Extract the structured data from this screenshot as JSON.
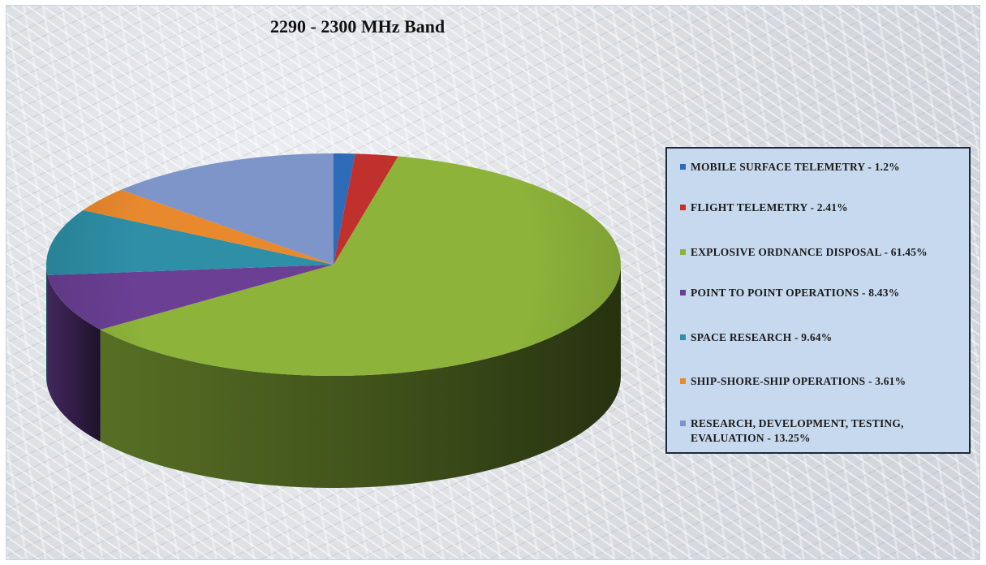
{
  "chart_data": {
    "type": "pie",
    "title": "2290 - 2300 MHz Band",
    "style": "3d",
    "legend_position": "right",
    "slices": [
      {
        "label": "MOBILE SURFACE TELEMETRY - 1.2%",
        "value": 1.2,
        "color": "#2e6bb8"
      },
      {
        "label": "FLIGHT TELEMETRY - 2.41%",
        "value": 2.41,
        "color": "#c0302c"
      },
      {
        "label": "EXPLOSIVE ORDNANCE DISPOSAL - 61.45%",
        "value": 61.45,
        "color": "#8db33a"
      },
      {
        "label": "POINT TO POINT OPERATIONS - 8.43%",
        "value": 8.43,
        "color": "#6a3f94"
      },
      {
        "label": "SPACE RESEARCH - 9.64%",
        "value": 9.64,
        "color": "#2e8fa6"
      },
      {
        "label": "SHIP-SHORE-SHIP OPERATIONS - 3.61%",
        "value": 3.61,
        "color": "#e8892e"
      },
      {
        "label": "RESEARCH, DEVELOPMENT, TESTING, EVALUATION - 13.25%",
        "value": 13.25,
        "color": "#7d95c9"
      }
    ]
  }
}
